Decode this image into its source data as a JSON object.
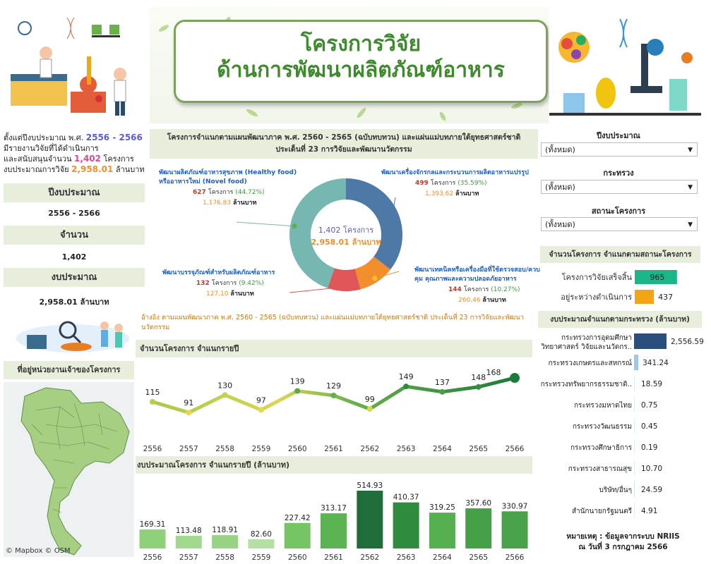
{
  "header": {
    "title_line1": "โครงการวิจัย",
    "title_line2": "ด้านการพัฒนาผลิตภัณฑ์อาหาร"
  },
  "summary": {
    "line1_prefix": "ตั้งแต่ปีงบประมาณ พ.ศ. ",
    "line1_years": "2556 - 2566",
    "line2": "มีรายงานวิจัยที่ได้ดำเนินการ",
    "line3_prefix": "และสนับสนุนจำนวน ",
    "line3_count": "1,402",
    "line3_suffix": " โครงการ",
    "line4_prefix": "งบประมาณการวิจัย ",
    "line4_budget": "2,958.01",
    "line4_suffix": " ล้านบาท"
  },
  "kpis": {
    "year_label": "ปีงบประมาณ",
    "year_value": "2556 - 2566",
    "count_label": "จำนวน",
    "count_value": "1,402",
    "budget_label": "งบประมาณ",
    "budget_value": "2,958.01 ล้านบาท"
  },
  "map": {
    "title": "ที่อยู่หน่วยงานเจ้าของโครงการ",
    "attribution": "© Mapbox © OSM"
  },
  "filters": {
    "year_label": "ปีงบประมาณ",
    "year_value": "(ทั้งหมด)",
    "ministry_label": "กระทรวง",
    "ministry_value": "(ทั้งหมด)",
    "status_label": "สถานะโครงการ",
    "status_value": "(ทั้งหมด)"
  },
  "donut": {
    "title_line1": "โครงการจำแนกตามแผนพัฒนาภาค พ.ศ. 2560 - 2565 (ฉบับทบทวน) และแผ่นแม่บทภายใต้ยุทธศาสตร์ชาติ",
    "title_line2": "ประเด็นที่ 23 การวิจัยและพัฒนานวัตกรรม",
    "center_count": "1,402 โครงการ",
    "center_budget": "2,958.01 ล้านบาท",
    "footnote": "อ้างอิง ตามแผนพัฒนาภาค พ.ศ. 2560 - 2565 (ฉบับทบทวน) และแผ่นแม่บทภายใต้ยุทธศาสตร์ชาติ ประเด็นที่ 23 การวิจัยและพัฒนานวัตกรรม"
  },
  "chart_data": [
    {
      "type": "pie",
      "series": [
        {
          "name_line1": "พัฒนาเครื่องจักรกลและกระบวนการผลิตอาหารแปรรูป",
          "name_line2": "",
          "count": 499,
          "pct": "(35.59%)",
          "budget": "1,393.62",
          "color": "#4e79a7"
        },
        {
          "name_line1": "พัฒนาเทคนิคหรือเครื่องมือที่ใช้ตรวจสอบ/ควบ",
          "name_line2": "คุม คุณภาพและความปลอดภัยอาหาร",
          "count": 144,
          "pct": "(10.27%)",
          "budget": "260.46",
          "color": "#f28e2b"
        },
        {
          "name_line1": "พัฒนาบรรจุภัณฑ์สำหรับผลิตภัณฑ์อาหาร",
          "name_line2": "",
          "count": 132,
          "pct": "(9.42%)",
          "budget": "127.10",
          "color": "#e15759"
        },
        {
          "name_line1": "พัฒนาผลิตภัณฑ์อาหารสุขภาพ (Healthy food)",
          "name_line2": "หรืออาหารใหม่ (Novel food)",
          "count": 627,
          "pct": "(44.72%)",
          "budget": "1,176.83",
          "color": "#76b7b2"
        }
      ],
      "count_unit": "โครงการ",
      "budget_unit": "ล้านบาท"
    },
    {
      "type": "line",
      "title": "จำนวนโครงการ จำแนกรายปี",
      "x": [
        "2556",
        "2557",
        "2558",
        "2559",
        "2560",
        "2561",
        "2562",
        "2563",
        "2564",
        "2565",
        "2566"
      ],
      "values": [
        115,
        91,
        130,
        97,
        139,
        129,
        99,
        149,
        137,
        148,
        168
      ],
      "ylim": [
        60,
        190
      ]
    },
    {
      "type": "bar",
      "title": "งบประมาณโครงการ จำแนกรายปี (ล้านบาท)",
      "categories": [
        "2556",
        "2557",
        "2558",
        "2559",
        "2560",
        "2561",
        "2562",
        "2563",
        "2564",
        "2565",
        "2566"
      ],
      "values": [
        169.31,
        113.48,
        118.91,
        82.6,
        227.42,
        313.17,
        514.93,
        410.37,
        319.25,
        357.6,
        330.97
      ],
      "labels": [
        "169.31",
        "113.48",
        "118.91",
        "82.60",
        "227.42",
        "313.17",
        "514.93",
        "410.37",
        "319.25",
        "357.60",
        "330.97"
      ],
      "ylim": [
        0,
        540
      ]
    },
    {
      "type": "bar",
      "title": "จำนวนโครงการ จำแนกตามสถานะโครงการ",
      "categories": [
        "โครงการวิจัยเสร็จสิ้น",
        "อยู่ระหว่างดำเนินการ"
      ],
      "values": [
        965,
        437
      ],
      "colors": [
        "#1bb58a",
        "#f2a516"
      ],
      "xlim": [
        0,
        1000
      ]
    },
    {
      "type": "bar",
      "title": "งบประมาณจำแนกตามกระทรวง (ล้านบาท)",
      "categories": [
        "กระทรวงการอุดมศึกษา|วิทยาศาสตร์ วิจัยและนวัตกร..",
        "กระทรวงเกษตรและสหกรณ์",
        "กระทรวงทรัพยากรธรรมชาติ..",
        "กระทรวงมหาดไทย",
        "กระทรวงวัฒนธรรม",
        "กระทรวงศึกษาธิการ",
        "กระทรวงสาธารณสุข",
        "บริษัท/อื่นๆ",
        "สำนักนายกรัฐมนตรี"
      ],
      "values": [
        2556.59,
        341.24,
        18.59,
        0.75,
        0.45,
        0.19,
        10.7,
        24.59,
        4.91
      ],
      "labels": [
        "2,556.59",
        "341.24",
        "18.59",
        "0.75",
        "0.45",
        "0.19",
        "10.70",
        "24.59",
        "4.91"
      ],
      "xlim": [
        0,
        2556.59
      ]
    }
  ],
  "note": {
    "line1": "หมายเหตุ : ข้อมูลจากระบบ NRIIS",
    "line2": "ณ วันที่ 3 กรกฎาคม 2566"
  }
}
